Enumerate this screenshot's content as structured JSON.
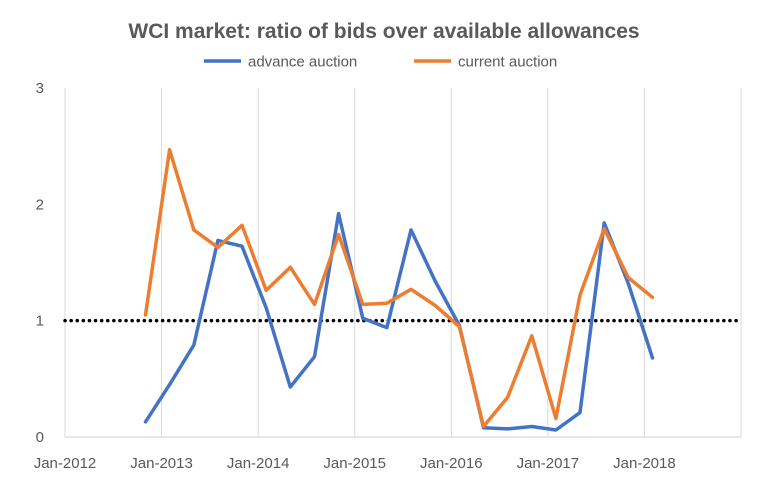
{
  "chart_data": {
    "type": "line",
    "title": "WCI market: ratio of bids over available allowances",
    "xlabel": "",
    "ylabel": "",
    "x_ticks": [
      "Jan-2012",
      "Jan-2013",
      "Jan-2014",
      "Jan-2015",
      "Jan-2016",
      "Jan-2017",
      "Jan-2018"
    ],
    "x_range": [
      "2012-01",
      "2019-01"
    ],
    "ylim": [
      0,
      3
    ],
    "y_ticks": [
      0,
      1,
      2,
      3
    ],
    "grid": "vertical",
    "legend_position": "top",
    "reference_line": {
      "y": 1,
      "style": "dotted",
      "color": "#000000"
    },
    "series": [
      {
        "name": "advance auction",
        "color": "#4472C4",
        "x": [
          "2012-11",
          "2013-02",
          "2013-05",
          "2013-08",
          "2013-11",
          "2014-02",
          "2014-05",
          "2014-08",
          "2014-11",
          "2015-02",
          "2015-05",
          "2015-08",
          "2015-11",
          "2016-02",
          "2016-05",
          "2016-08",
          "2016-11",
          "2017-02",
          "2017-05",
          "2017-08",
          "2017-11",
          "2018-02"
        ],
        "values": [
          0.13,
          0.45,
          0.79,
          1.69,
          1.64,
          1.11,
          0.43,
          0.69,
          1.92,
          1.02,
          0.94,
          1.78,
          1.34,
          0.96,
          0.08,
          0.07,
          0.09,
          0.06,
          0.21,
          1.84,
          1.32,
          0.68
        ]
      },
      {
        "name": "current auction",
        "color": "#ED7D31",
        "x": [
          "2012-11",
          "2013-02",
          "2013-05",
          "2013-08",
          "2013-11",
          "2014-02",
          "2014-05",
          "2014-08",
          "2014-11",
          "2015-02",
          "2015-05",
          "2015-08",
          "2015-11",
          "2016-02",
          "2016-05",
          "2016-08",
          "2016-11",
          "2017-02",
          "2017-05",
          "2017-08",
          "2017-11",
          "2018-02"
        ],
        "values": [
          1.05,
          2.47,
          1.78,
          1.63,
          1.82,
          1.26,
          1.46,
          1.14,
          1.74,
          1.14,
          1.15,
          1.27,
          1.13,
          0.95,
          0.09,
          0.34,
          0.87,
          0.16,
          1.22,
          1.79,
          1.37,
          1.2
        ]
      }
    ]
  }
}
